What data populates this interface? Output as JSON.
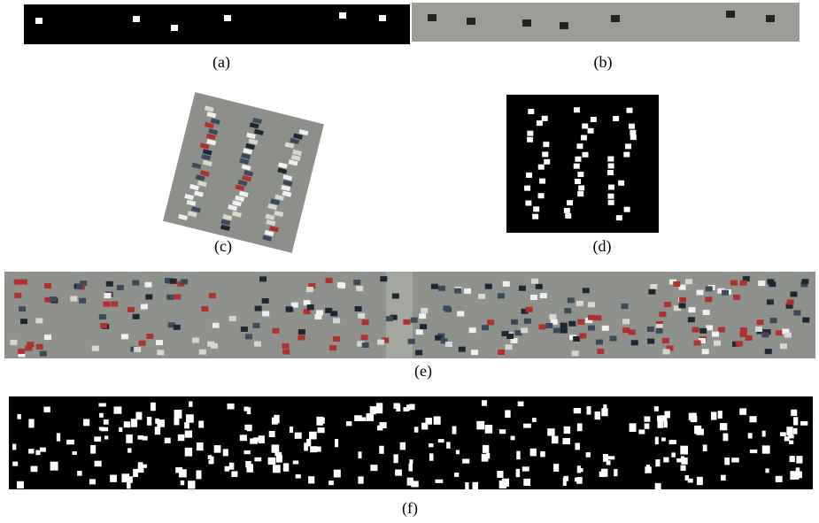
{
  "captions": {
    "a": "(a)",
    "b": "(b)",
    "c": "(c)",
    "d": "(d)",
    "e": "(e)",
    "f": "(f)"
  }
}
